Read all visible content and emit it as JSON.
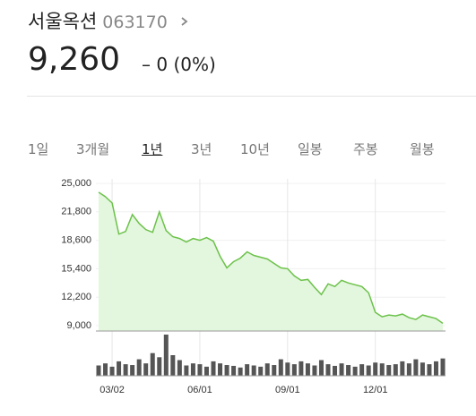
{
  "header": {
    "name": "서울옥션",
    "code": "063170",
    "price": "9,260",
    "change_sign": "–",
    "change": "0 (0%)"
  },
  "tabs": [
    "1일",
    "3개월",
    "1년",
    "3년",
    "10년",
    "일봉",
    "주봉",
    "월봉"
  ],
  "chart_data": {
    "type": "area",
    "x": [
      null,
      null,
      "03/02",
      null,
      null,
      null,
      null,
      null,
      null,
      null,
      null,
      null,
      null,
      null,
      null,
      "06/01",
      null,
      null,
      null,
      null,
      null,
      null,
      null,
      null,
      null,
      null,
      null,
      null,
      "09/01",
      null,
      null,
      null,
      null,
      null,
      null,
      null,
      null,
      null,
      null,
      null,
      null,
      "12/01",
      null,
      null,
      null,
      null,
      null,
      null,
      null,
      null,
      null,
      null
    ],
    "series": [
      {
        "name": "서울옥션",
        "color": "#6cc24a",
        "values": [
          24000,
          23500,
          22800,
          19300,
          19600,
          21500,
          20500,
          19800,
          19500,
          21800,
          19700,
          19000,
          18800,
          18400,
          18800,
          18600,
          18900,
          18500,
          16800,
          15500,
          16200,
          16600,
          17300,
          16900,
          16700,
          16500,
          16000,
          15500,
          15400,
          14600,
          14100,
          14200,
          13300,
          12500,
          13700,
          13400,
          14100,
          13800,
          13600,
          13400,
          12700,
          10500,
          10000,
          10200,
          10100,
          10300,
          9900,
          9700,
          10200,
          10000,
          9800,
          9260
        ]
      }
    ],
    "ylim": [
      8400,
      25500
    ],
    "yticks": [
      {
        "value": 25000,
        "label": "25,000"
      },
      {
        "value": 21800,
        "label": "21,800"
      },
      {
        "value": 18600,
        "label": "18,600"
      },
      {
        "value": 15400,
        "label": "15,400"
      },
      {
        "value": 12200,
        "label": "12,200"
      },
      {
        "value": 9000,
        "label": "9,000"
      }
    ],
    "volume": {
      "color": "#555555",
      "ylim": [
        0,
        100
      ],
      "values": [
        25,
        30,
        22,
        35,
        28,
        26,
        40,
        30,
        55,
        45,
        100,
        50,
        38,
        25,
        30,
        28,
        22,
        35,
        30,
        26,
        24,
        20,
        28,
        25,
        22,
        30,
        26,
        40,
        32,
        28,
        35,
        30,
        25,
        38,
        28,
        24,
        30,
        26,
        22,
        28,
        25,
        32,
        30,
        26,
        28,
        35,
        30,
        40,
        32,
        28,
        35,
        42
      ]
    },
    "grid": true
  }
}
